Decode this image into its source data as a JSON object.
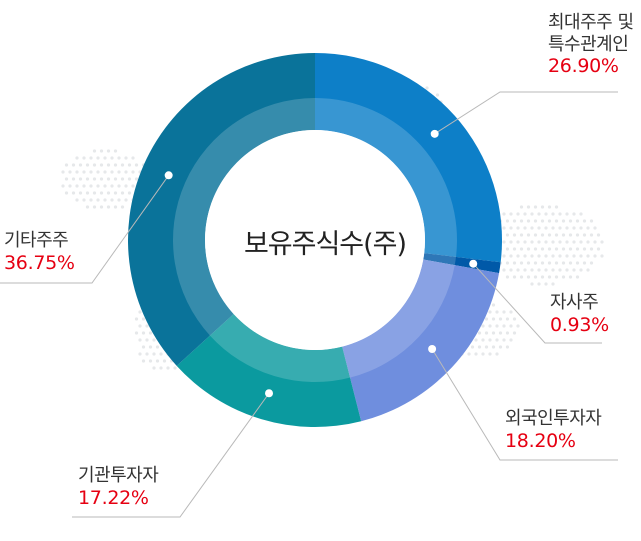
{
  "chart_data": {
    "type": "pie",
    "variant": "donut",
    "title": "보유주식수(주)",
    "slices": [
      {
        "name_lines": [
          "최대주주 및",
          "특수관계인"
        ],
        "value": 26.9,
        "label": "26.90%",
        "color": "#0d7fc8"
      },
      {
        "name_lines": [
          "자사주"
        ],
        "value": 0.93,
        "label": "0.93%",
        "color": "#0059a8"
      },
      {
        "name_lines": [
          "외국인투자자"
        ],
        "value": 18.2,
        "label": "18.20%",
        "color": "#6f8ede"
      },
      {
        "name_lines": [
          "기관투자자"
        ],
        "value": 17.22,
        "label": "17.22%",
        "color": "#0b9a9f"
      },
      {
        "name_lines": [
          "기타주주"
        ],
        "value": 36.75,
        "label": "36.75%",
        "color": "#0a739a"
      }
    ],
    "legend": "none"
  }
}
